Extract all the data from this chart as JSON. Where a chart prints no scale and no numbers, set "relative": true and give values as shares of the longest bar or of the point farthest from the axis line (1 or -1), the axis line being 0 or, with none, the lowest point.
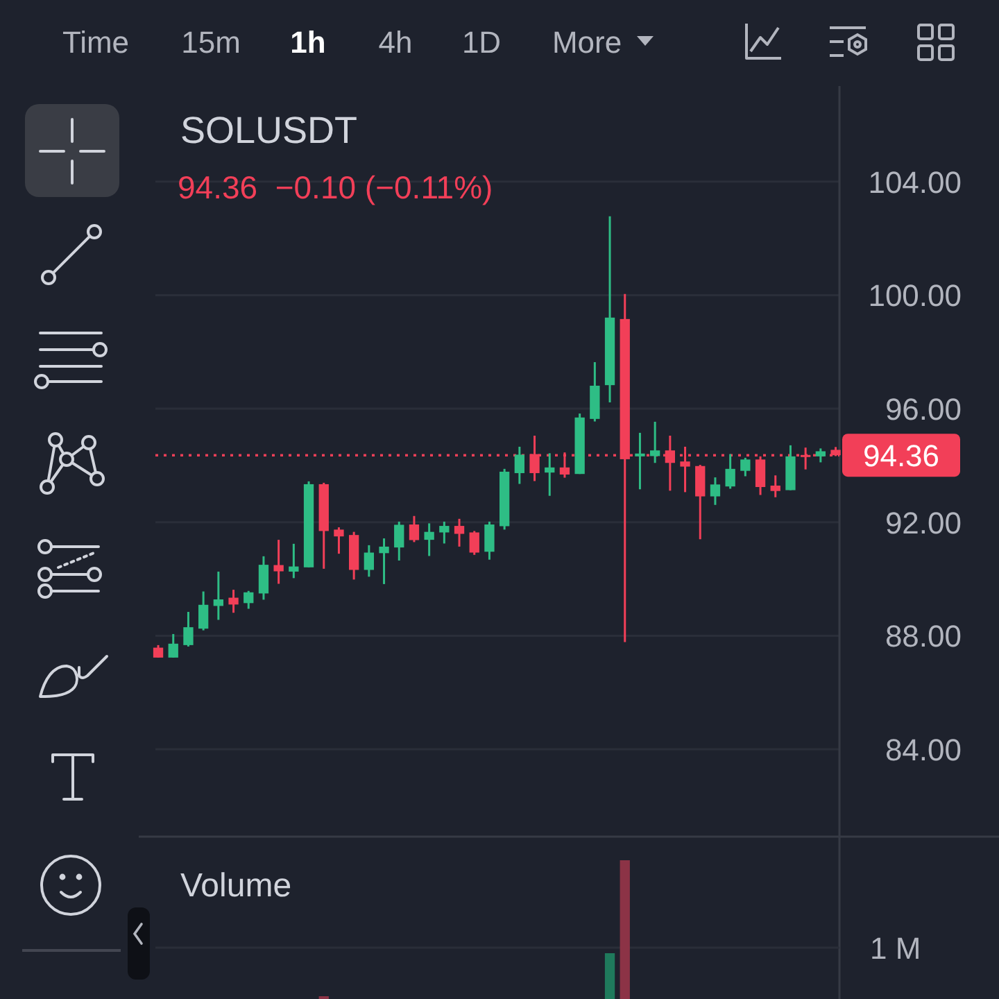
{
  "chart_data": [
    {
      "type": "other",
      "annotations": [
        "Time",
        "15m",
        "1h",
        "4h",
        "1D",
        "More"
      ]
    },
    {
      "type": "candlestick",
      "title": "SOLUSDT",
      "subtitle": "94.36  −0.10 (−0.11%)",
      "categories": [
        null,
        null,
        null,
        null,
        null,
        null,
        null,
        null,
        null,
        null,
        null,
        null,
        null,
        null,
        null,
        null,
        null,
        null,
        null,
        null,
        null,
        null,
        null,
        null,
        null,
        null,
        null,
        null,
        null,
        null,
        null,
        null,
        null,
        null,
        null,
        null,
        null,
        null,
        null,
        null,
        null,
        null,
        null,
        null,
        null,
        null
      ],
      "ohlc": [
        [
          87.58,
          87.67,
          87.23,
          87.23
        ],
        [
          87.23,
          88.06,
          87.23,
          87.72
        ],
        [
          87.67,
          88.84,
          87.62,
          88.3
        ],
        [
          88.25,
          89.56,
          88.19,
          89.09
        ],
        [
          89.05,
          90.26,
          88.56,
          89.28
        ],
        [
          89.34,
          89.62,
          88.81,
          89.1
        ],
        [
          89.15,
          89.58,
          88.95,
          89.53
        ],
        [
          89.49,
          90.8,
          89.27,
          90.5
        ],
        [
          90.49,
          91.38,
          89.83,
          90.27
        ],
        [
          90.26,
          91.24,
          90.03,
          90.44
        ],
        [
          90.41,
          93.44,
          90.41,
          93.34
        ],
        [
          93.34,
          93.39,
          90.36,
          91.69
        ],
        [
          91.74,
          91.82,
          90.89,
          91.5
        ],
        [
          91.55,
          91.66,
          89.98,
          90.32
        ],
        [
          90.32,
          91.19,
          90.08,
          90.93
        ],
        [
          90.91,
          91.43,
          89.82,
          91.14
        ],
        [
          91.11,
          92.02,
          90.65,
          91.91
        ],
        [
          91.92,
          92.22,
          91.3,
          91.37
        ],
        [
          91.38,
          91.96,
          90.81,
          91.66
        ],
        [
          91.64,
          92.02,
          91.25,
          91.87
        ],
        [
          91.87,
          92.12,
          91.14,
          91.59
        ],
        [
          91.64,
          91.69,
          90.85,
          90.93
        ],
        [
          90.96,
          92.02,
          90.68,
          91.92
        ],
        [
          91.86,
          93.88,
          91.74,
          93.78
        ],
        [
          93.73,
          94.66,
          93.35,
          94.38
        ],
        [
          94.4,
          95.05,
          93.45,
          93.73
        ],
        [
          93.75,
          94.43,
          92.93,
          93.93
        ],
        [
          93.93,
          94.46,
          93.57,
          93.68
        ],
        [
          93.7,
          95.83,
          93.7,
          95.69
        ],
        [
          95.64,
          97.64,
          95.55,
          96.81
        ],
        [
          96.83,
          102.78,
          96.22,
          99.21
        ],
        [
          99.16,
          100.04,
          87.78,
          94.22
        ],
        [
          94.32,
          95.15,
          93.16,
          94.42
        ],
        [
          94.33,
          95.54,
          94.09,
          94.53
        ],
        [
          94.53,
          95.05,
          93.11,
          94.09
        ],
        [
          94.14,
          94.66,
          93.06,
          93.96
        ],
        [
          93.98,
          94.02,
          91.4,
          92.91
        ],
        [
          92.91,
          93.58,
          92.61,
          93.33
        ],
        [
          93.26,
          94.4,
          93.18,
          93.88
        ],
        [
          93.81,
          94.27,
          93.62,
          94.21
        ],
        [
          94.21,
          94.32,
          92.96,
          93.24
        ],
        [
          93.29,
          93.65,
          92.88,
          93.1
        ],
        [
          93.13,
          94.71,
          93.13,
          94.32
        ],
        [
          94.37,
          94.63,
          93.86,
          94.3
        ],
        [
          94.32,
          94.6,
          94.11,
          94.5
        ],
        [
          94.55,
          94.65,
          94.33,
          94.36
        ]
      ],
      "colors": [
        "#f23f58",
        "#2ebd85",
        "#2ebd85",
        "#2ebd85",
        "#2ebd85",
        "#f23f58",
        "#2ebd85",
        "#2ebd85",
        "#f23f58",
        "#2ebd85",
        "#2ebd85",
        "#f23f58",
        "#f23f58",
        "#f23f58",
        "#2ebd85",
        "#2ebd85",
        "#2ebd85",
        "#f23f58",
        "#2ebd85",
        "#2ebd85",
        "#f23f58",
        "#f23f58",
        "#2ebd85",
        "#2ebd85",
        "#2ebd85",
        "#f23f58",
        "#2ebd85",
        "#f23f58",
        "#2ebd85",
        "#2ebd85",
        "#2ebd85",
        "#f23f58",
        "#2ebd85",
        "#2ebd85",
        "#f23f58",
        "#f23f58",
        "#f23f58",
        "#2ebd85",
        "#2ebd85",
        "#2ebd85",
        "#f23f58",
        "#f23f58",
        "#2ebd85",
        "#f23f58",
        "#2ebd85",
        "#f23f58"
      ],
      "ylim": [
        80.92,
        107.37
      ],
      "yticks": [
        {
          "value": 84,
          "label": "84.00"
        },
        {
          "value": 88,
          "label": "88.00"
        },
        {
          "value": 92,
          "label": "92.00"
        },
        {
          "value": 96,
          "label": "96.00"
        },
        {
          "value": 100,
          "label": "100.00"
        },
        {
          "value": 104,
          "label": "104.00"
        }
      ],
      "grid": "y",
      "ref_lines": [
        {
          "axis": "y",
          "value": 94.36,
          "label": "94.36",
          "color": "#f23f58",
          "line_style": "dotted"
        }
      ]
    },
    {
      "type": "bar",
      "title": "Volume",
      "relative": true,
      "categories": [
        null,
        null,
        null,
        null,
        null,
        null,
        null,
        null,
        null,
        null,
        null,
        null,
        null,
        null,
        null,
        null,
        null,
        null,
        null,
        null,
        null,
        null,
        null,
        null,
        null,
        null,
        null,
        null,
        null,
        null,
        null,
        null,
        null,
        null,
        null,
        null,
        null,
        null,
        null,
        null,
        null,
        null,
        null,
        null,
        null,
        null
      ],
      "values": [
        null,
        null,
        null,
        null,
        null,
        null,
        null,
        null,
        null,
        null,
        null,
        0.02,
        null,
        null,
        null,
        null,
        null,
        null,
        null,
        null,
        null,
        null,
        null,
        null,
        null,
        null,
        null,
        null,
        null,
        null,
        0.33,
        1,
        null,
        null,
        null,
        null,
        null,
        null,
        null,
        null,
        null,
        null,
        null,
        null,
        null,
        null
      ],
      "colors": [
        null,
        null,
        null,
        null,
        null,
        null,
        null,
        null,
        null,
        null,
        null,
        "#8c3346",
        null,
        null,
        null,
        null,
        null,
        null,
        null,
        null,
        null,
        null,
        null,
        null,
        null,
        null,
        null,
        null,
        null,
        null,
        "#1f7a5c",
        "#8c3346",
        null,
        null,
        null,
        null,
        null,
        null,
        null,
        null,
        null,
        null,
        null,
        null,
        null,
        null
      ],
      "ref_lines": [
        {
          "axis": "y",
          "value": 0.37,
          "label": "1 M",
          "color": "#2a2e39"
        }
      ]
    }
  ]
}
